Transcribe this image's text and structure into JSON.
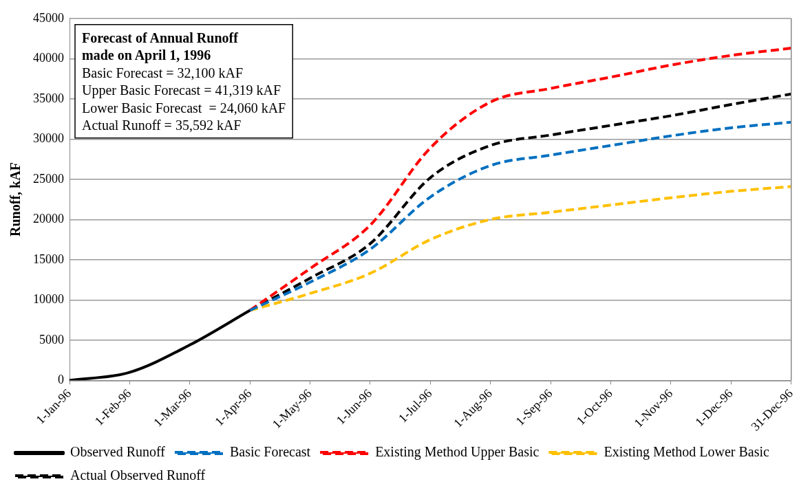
{
  "chart_data": {
    "type": "line",
    "title": "Forecast of Annual Runoff made on April 1, 1996",
    "ylabel": "Runoff, kAF",
    "categories": [
      "1-Jan-96",
      "1-Feb-96",
      "1-Mar-96",
      "1-Apr-96",
      "1-May-96",
      "1-Jun-96",
      "1-Jul-96",
      "1-Aug-96",
      "1-Sep-96",
      "1-Oct-96",
      "1-Nov-96",
      "1-Dec-96",
      "31-Dec-96"
    ],
    "series": [
      {
        "name": "Observed Runoff",
        "color": "#000000",
        "line_style": "solid",
        "values": [
          0,
          1000,
          4400,
          8700,
          null,
          null,
          null,
          null,
          null,
          null,
          null,
          null,
          null
        ]
      },
      {
        "name": "Basic Forecast",
        "color": "#0070c0",
        "line_style": "dashed",
        "values": [
          null,
          null,
          null,
          8700,
          12200,
          16300,
          22800,
          26700,
          28000,
          29200,
          30400,
          31400,
          32100
        ]
      },
      {
        "name": "Existing Method Upper Basic",
        "color": "#ff0000",
        "line_style": "dashed",
        "values": [
          null,
          null,
          null,
          8700,
          13900,
          19300,
          28900,
          34600,
          36300,
          37700,
          39200,
          40400,
          41300
        ]
      },
      {
        "name": "Existing Method Lower Basic",
        "color": "#ffc000",
        "line_style": "dashed",
        "values": [
          null,
          null,
          null,
          8700,
          10800,
          13300,
          17500,
          20000,
          20900,
          21800,
          22700,
          23500,
          24100
        ]
      },
      {
        "name": "Actual Observed Runoff",
        "color": "#000000",
        "line_style": "dashed",
        "values": [
          null,
          null,
          null,
          8700,
          12700,
          17000,
          25200,
          29200,
          30500,
          31700,
          32900,
          34300,
          35600
        ]
      }
    ],
    "ylim": [
      0,
      45000
    ],
    "yticks": [
      0,
      5000,
      10000,
      15000,
      20000,
      25000,
      30000,
      35000,
      40000,
      45000
    ],
    "grid": "y",
    "legend": "bottom",
    "marker": "none",
    "annotations": [
      "Basic Forecast = 32,100 kAF",
      "Upper Basic Forecast = 41,319 kAF",
      "Lower Basic Forecast  = 24,060 kAF",
      "Actual Runoff = 35,592 kAF"
    ]
  }
}
